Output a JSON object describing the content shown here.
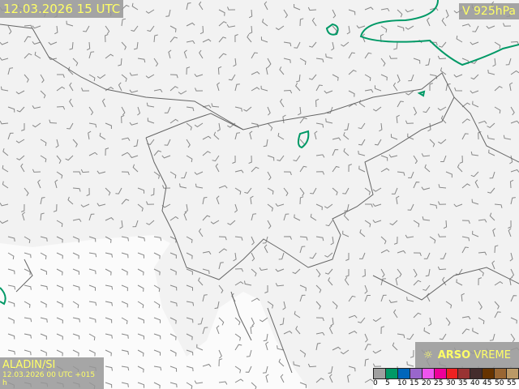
{
  "header": {
    "valid_time": "12.03.2026 15 UTC",
    "level": "V 925hPa"
  },
  "footer": {
    "model": "ALADIN/SI",
    "run": "12.03.2026 00 UTC +015 h"
  },
  "brand": {
    "name_bold": "ARSO",
    "name_light": "VREME",
    "icon": "weather-sun-icon"
  },
  "legend": {
    "labels": [
      "0",
      "5",
      "10",
      "15",
      "20",
      "25",
      "30",
      "35",
      "40",
      "45",
      "50",
      "55"
    ],
    "colors": [
      "#a0a0a0",
      "#009966",
      "#0066bb",
      "#9966cc",
      "#ee55ee",
      "#ee0099",
      "#ee2222",
      "#993333",
      "#442c2c",
      "#663300",
      "#996633",
      "#bb9966"
    ]
  },
  "colors": {
    "background": "#f2f2f2",
    "borders": "#666666",
    "barbs": "#777777",
    "contour": "#009966",
    "label_text": "#ffff66"
  }
}
